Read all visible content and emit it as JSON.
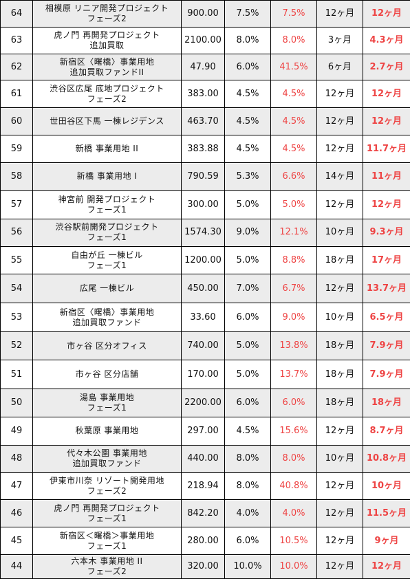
{
  "accent_red": "#ee4444",
  "row_shade": "#ececec",
  "rows": [
    {
      "no": "64",
      "name": [
        "相模原 リニア開発プロジェクト",
        "フェーズ2"
      ],
      "amount": "900.00",
      "rate": "7.5%",
      "actual_rate": "7.5%",
      "period": "12ヶ月",
      "actual_period": "12ヶ月"
    },
    {
      "no": "63",
      "name": [
        "虎ノ門 再開発プロジェクト",
        "追加買取"
      ],
      "amount": "2100.00",
      "rate": "8.0%",
      "actual_rate": "8.0%",
      "period": "3ヶ月",
      "actual_period": "4.3ヶ月"
    },
    {
      "no": "62",
      "name": [
        "新宿区〈曙橋〉事業用地",
        "追加買取ファンドII"
      ],
      "amount": "47.90",
      "rate": "6.0%",
      "actual_rate": "41.5%",
      "period": "6ヶ月",
      "actual_period": "2.7ヶ月"
    },
    {
      "no": "61",
      "name": [
        "渋谷区広尾 底地プロジェクト",
        "フェーズ2"
      ],
      "amount": "383.00",
      "rate": "4.5%",
      "actual_rate": "4.5%",
      "period": "12ヶ月",
      "actual_period": "12ヶ月"
    },
    {
      "no": "60",
      "name": [
        "世田谷区下馬 一棟レジデンス"
      ],
      "amount": "463.70",
      "rate": "4.5%",
      "actual_rate": "4.5%",
      "period": "12ヶ月",
      "actual_period": "12ヶ月"
    },
    {
      "no": "59",
      "name": [
        "新橋 事業用地 II"
      ],
      "amount": "383.88",
      "rate": "4.5%",
      "actual_rate": "4.5%",
      "period": "12ヶ月",
      "actual_period": "11.7ヶ月"
    },
    {
      "no": "58",
      "name": [
        "新橋 事業用地 I"
      ],
      "amount": "790.59",
      "rate": "5.3%",
      "actual_rate": "6.6%",
      "period": "14ヶ月",
      "actual_period": "11ヶ月"
    },
    {
      "no": "57",
      "name": [
        "神宮前 開発プロジェクト",
        "フェーズ1"
      ],
      "amount": "300.00",
      "rate": "5.0%",
      "actual_rate": "5.0%",
      "period": "12ヶ月",
      "actual_period": "12ヶ月"
    },
    {
      "no": "56",
      "name": [
        "渋谷駅前開発プロジェクト",
        "フェーズ1"
      ],
      "amount": "1574.30",
      "rate": "9.0%",
      "actual_rate": "12.1%",
      "period": "10ヶ月",
      "actual_period": "9.3ヶ月"
    },
    {
      "no": "55",
      "name": [
        "自由が丘 一棟ビル",
        "フェーズ1"
      ],
      "amount": "1200.00",
      "rate": "5.0%",
      "actual_rate": "8.8%",
      "period": "18ヶ月",
      "actual_period": "17ヶ月"
    },
    {
      "no": "54",
      "name": [
        "広尾 一棟ビル"
      ],
      "amount": "450.00",
      "rate": "7.0%",
      "actual_rate": "6.7%",
      "period": "12ヶ月",
      "actual_period": "13.7ヶ月"
    },
    {
      "no": "53",
      "name": [
        "新宿区〈曙橋〉事業用地",
        "追加買取ファンド"
      ],
      "amount": "33.60",
      "rate": "6.0%",
      "actual_rate": "9.0%",
      "period": "10ヶ月",
      "actual_period": "6.5ヶ月"
    },
    {
      "no": "52",
      "name": [
        "市ヶ谷 区分オフィス"
      ],
      "amount": "740.00",
      "rate": "5.0%",
      "actual_rate": "13.8%",
      "period": "18ヶ月",
      "actual_period": "7.9ヶ月"
    },
    {
      "no": "51",
      "name": [
        "市ヶ谷 区分店舗"
      ],
      "amount": "170.00",
      "rate": "5.0%",
      "actual_rate": "13.7%",
      "period": "18ヶ月",
      "actual_period": "7.9ヶ月"
    },
    {
      "no": "50",
      "name": [
        "湯島 事業用地",
        "フェーズ1"
      ],
      "amount": "2200.00",
      "rate": "6.0%",
      "actual_rate": "6.0%",
      "period": "18ヶ月",
      "actual_period": "18ヶ月"
    },
    {
      "no": "49",
      "name": [
        "秋葉原 事業用地"
      ],
      "amount": "297.00",
      "rate": "4.5%",
      "actual_rate": "15.6%",
      "period": "12ヶ月",
      "actual_period": "8.7ヶ月"
    },
    {
      "no": "48",
      "name": [
        "代々木公園 事業用地",
        "追加買取ファンド"
      ],
      "amount": "440.00",
      "rate": "8.0%",
      "actual_rate": "8.0%",
      "period": "10ヶ月",
      "actual_period": "10.8ヶ月"
    },
    {
      "no": "47",
      "name": [
        "伊東市川奈 リゾート開発用地",
        "フェーズ2"
      ],
      "amount": "218.94",
      "rate": "8.0%",
      "actual_rate": "40.8%",
      "period": "12ヶ月",
      "actual_period": "10ヶ月"
    },
    {
      "no": "46",
      "name": [
        "虎ノ門 再開発プロジェクト",
        "フェーズ1"
      ],
      "amount": "842.20",
      "rate": "4.0%",
      "actual_rate": "4.0%",
      "period": "12ヶ月",
      "actual_period": "11.5ヶ月"
    },
    {
      "no": "45",
      "name": [
        "新宿区＜曙橋＞事業用地",
        "フェーズ1"
      ],
      "amount": "280.00",
      "rate": "6.0%",
      "actual_rate": "10.5%",
      "period": "12ヶ月",
      "actual_period": "9ヶ月"
    },
    {
      "no": "44",
      "name": [
        "六本木 事業用地 II",
        "フェーズ2"
      ],
      "amount": "320.00",
      "rate": "10.0%",
      "actual_rate": "10.0%",
      "period": "12ヶ月",
      "actual_period": "12ヶ月"
    }
  ]
}
